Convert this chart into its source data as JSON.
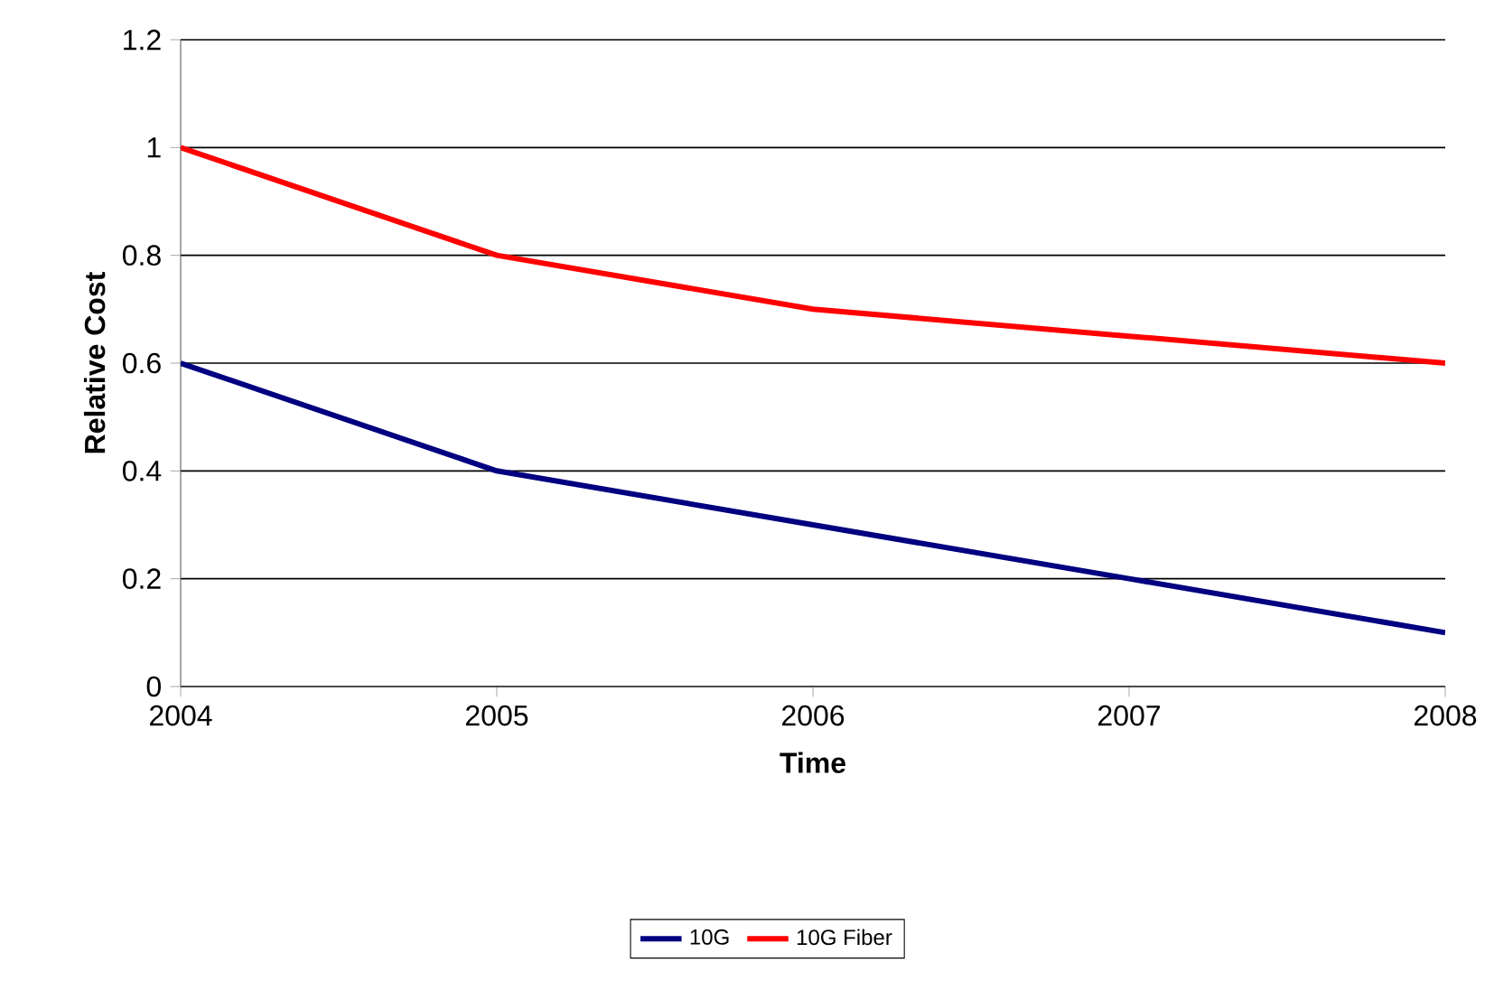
{
  "chart_data": {
    "type": "line",
    "xlabel": "Time",
    "ylabel": "Relative Cost",
    "x": [
      2004,
      2005,
      2006,
      2007,
      2008
    ],
    "series": [
      {
        "name": "10G",
        "color": "#000080",
        "values": [
          0.6,
          0.4,
          0.3,
          0.2,
          0.1
        ]
      },
      {
        "name": "10G Fiber",
        "color": "#ff0000",
        "values": [
          1,
          0.8,
          0.7,
          0.65,
          0.6
        ]
      }
    ],
    "xlim": [
      2004,
      2008
    ],
    "xticks": [
      2004,
      2005,
      2006,
      2007,
      2008
    ],
    "ylim": [
      0,
      1.2
    ],
    "yticks": [
      0,
      0.2,
      0.4,
      0.6,
      0.8,
      1,
      1.2
    ],
    "grid": "y",
    "legend": "bottom",
    "marker": "none",
    "line_style": "solid"
  }
}
